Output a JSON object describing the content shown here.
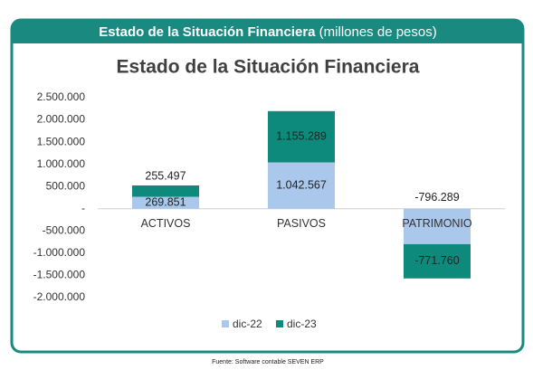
{
  "chart_data": {
    "type": "stacked-bar",
    "header_title": "Estado de la Situación Financiera",
    "header_subtitle": "(millones de pesos)",
    "title": "Estado de la Situación Financiera",
    "source": "Fuente: Software contable SEVEN ERP",
    "categories": [
      "ACTIVOS",
      "PASIVOS",
      "PATRIMONIO"
    ],
    "series": [
      {
        "name": "dic-22",
        "color": "#a9c8ec",
        "values": [
          269851,
          1042567,
          -796289
        ],
        "value_labels": [
          "269.851",
          "1.042.567",
          "-796.289"
        ]
      },
      {
        "name": "dic-23",
        "color": "#0e8a7d",
        "values": [
          255497,
          1155289,
          -771760
        ],
        "value_labels": [
          "255.497",
          "1.155.289",
          "-771.760"
        ]
      }
    ],
    "ylim": [
      -2000000,
      2500000
    ],
    "yticks": [
      {
        "value": 2500000,
        "label": "2.500.000"
      },
      {
        "value": 2000000,
        "label": "2.000.000"
      },
      {
        "value": 1500000,
        "label": "1.500.000"
      },
      {
        "value": 1000000,
        "label": "1.000.000"
      },
      {
        "value": 500000,
        "label": "500.000"
      },
      {
        "value": 0,
        "label": "-"
      },
      {
        "value": -500000,
        "label": "-500.000"
      },
      {
        "value": -1000000,
        "label": "-1.000.000"
      },
      {
        "value": -1500000,
        "label": "-1.500.000"
      },
      {
        "value": -2000000,
        "label": "-2.000.000"
      }
    ],
    "grid": false,
    "legend": "bottom"
  }
}
